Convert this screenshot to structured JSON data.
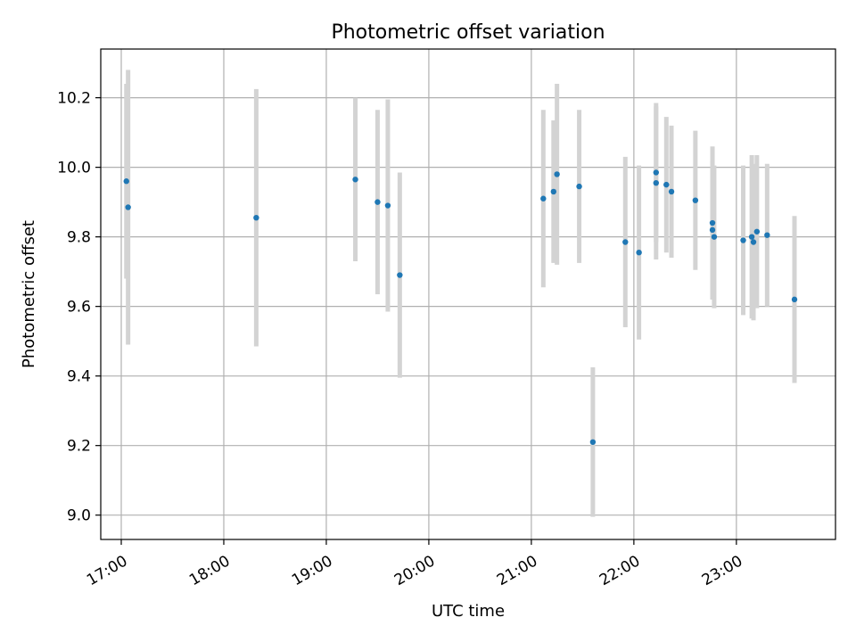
{
  "chart_data": {
    "type": "scatter",
    "title": "Photometric offset variation",
    "xlabel": "UTC time",
    "ylabel": "Photometric offset",
    "x_range": [
      "16:48",
      "23:58"
    ],
    "y_range": [
      8.93,
      10.34
    ],
    "x_ticks": [
      "17:00",
      "18:00",
      "19:00",
      "20:00",
      "21:00",
      "22:00",
      "23:00"
    ],
    "y_ticks": [
      "9.0",
      "9.2",
      "9.4",
      "9.6",
      "9.8",
      "10.0",
      "10.2"
    ],
    "grid": true,
    "colors": {
      "point": "#1f77b4",
      "errorbar": "#d3d3d3",
      "grid": "#b0b0b0"
    },
    "points": [
      {
        "time": "17:03",
        "y": 9.96,
        "err": 0.28
      },
      {
        "time": "17:04",
        "y": 9.885,
        "err": 0.395
      },
      {
        "time": "18:19",
        "y": 9.855,
        "err": 0.37
      },
      {
        "time": "19:17",
        "y": 9.965,
        "err": 0.235
      },
      {
        "time": "19:30",
        "y": 9.9,
        "err": 0.265
      },
      {
        "time": "19:36",
        "y": 9.89,
        "err": 0.305
      },
      {
        "time": "19:43",
        "y": 9.69,
        "err": 0.295
      },
      {
        "time": "21:07",
        "y": 9.91,
        "err": 0.255
      },
      {
        "time": "21:13",
        "y": 9.93,
        "err": 0.205
      },
      {
        "time": "21:15",
        "y": 9.98,
        "err": 0.26
      },
      {
        "time": "21:28",
        "y": 9.945,
        "err": 0.22
      },
      {
        "time": "21:36",
        "y": 9.21,
        "err": 0.215
      },
      {
        "time": "21:55",
        "y": 9.785,
        "err": 0.245
      },
      {
        "time": "22:03",
        "y": 9.755,
        "err": 0.25
      },
      {
        "time": "22:13",
        "y": 9.955,
        "err": 0.22
      },
      {
        "time": "22:13",
        "y": 9.985,
        "err": 0.2
      },
      {
        "time": "22:19",
        "y": 9.95,
        "err": 0.195
      },
      {
        "time": "22:22",
        "y": 9.93,
        "err": 0.19
      },
      {
        "time": "22:36",
        "y": 9.905,
        "err": 0.2
      },
      {
        "time": "22:46",
        "y": 9.84,
        "err": 0.22
      },
      {
        "time": "22:46",
        "y": 9.82,
        "err": 0.2
      },
      {
        "time": "22:47",
        "y": 9.8,
        "err": 0.205
      },
      {
        "time": "23:04",
        "y": 9.79,
        "err": 0.215
      },
      {
        "time": "23:09",
        "y": 9.8,
        "err": 0.235
      },
      {
        "time": "23:10",
        "y": 9.785,
        "err": 0.225
      },
      {
        "time": "23:12",
        "y": 9.815,
        "err": 0.22
      },
      {
        "time": "23:18",
        "y": 9.805,
        "err": 0.205
      },
      {
        "time": "23:34",
        "y": 9.62,
        "err": 0.24
      }
    ]
  }
}
